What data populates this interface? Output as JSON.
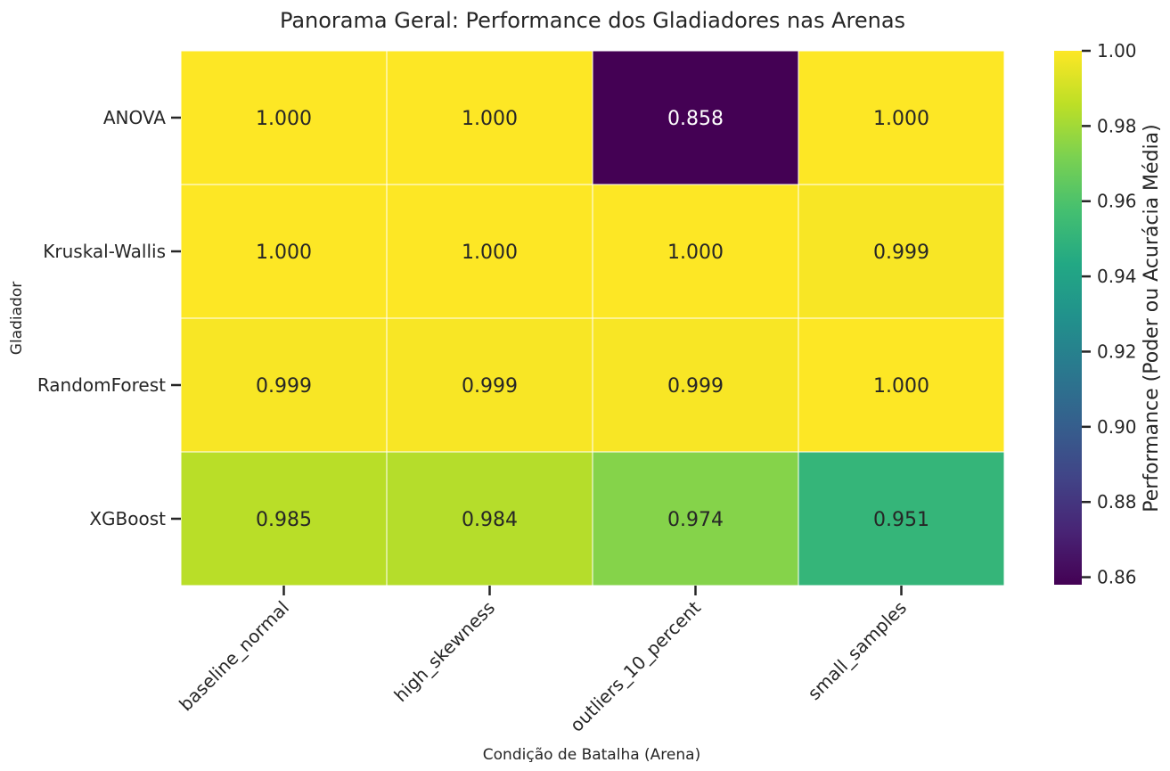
{
  "chart_data": {
    "type": "heatmap",
    "title": "Panorama Geral: Performance dos Gladiadores nas Arenas",
    "xlabel": "Condição de Batalha (Arena)",
    "ylabel": "Gladiador",
    "x_categories": [
      "baseline_normal",
      "high_skewness",
      "outliers_10_percent",
      "small_samples"
    ],
    "y_categories": [
      "ANOVA",
      "Kruskal-Wallis",
      "RandomForest",
      "XGBoost"
    ],
    "values": [
      [
        1.0,
        1.0,
        0.858,
        1.0
      ],
      [
        1.0,
        1.0,
        1.0,
        0.999
      ],
      [
        0.999,
        0.999,
        0.999,
        1.0
      ],
      [
        0.985,
        0.984,
        0.974,
        0.951
      ]
    ],
    "value_labels": [
      [
        "1.000",
        "1.000",
        "0.858",
        "1.000"
      ],
      [
        "1.000",
        "1.000",
        "1.000",
        "0.999"
      ],
      [
        "0.999",
        "0.999",
        "0.999",
        "1.000"
      ],
      [
        "0.985",
        "0.984",
        "0.974",
        "0.951"
      ]
    ],
    "colormap": "viridis",
    "colorbar": {
      "label": "Performance (Poder ou Acurácia Média)",
      "range": [
        0.858,
        1.0
      ],
      "ticks": [
        0.86,
        0.88,
        0.9,
        0.92,
        0.94,
        0.96,
        0.98,
        1.0
      ],
      "tick_labels": [
        "0.86",
        "0.88",
        "0.90",
        "0.92",
        "0.94",
        "0.96",
        "0.98",
        "1.00"
      ]
    },
    "text_color_dark": "#262626",
    "text_color_light": "#ffffff",
    "grid_line_color": "#ffffff"
  }
}
